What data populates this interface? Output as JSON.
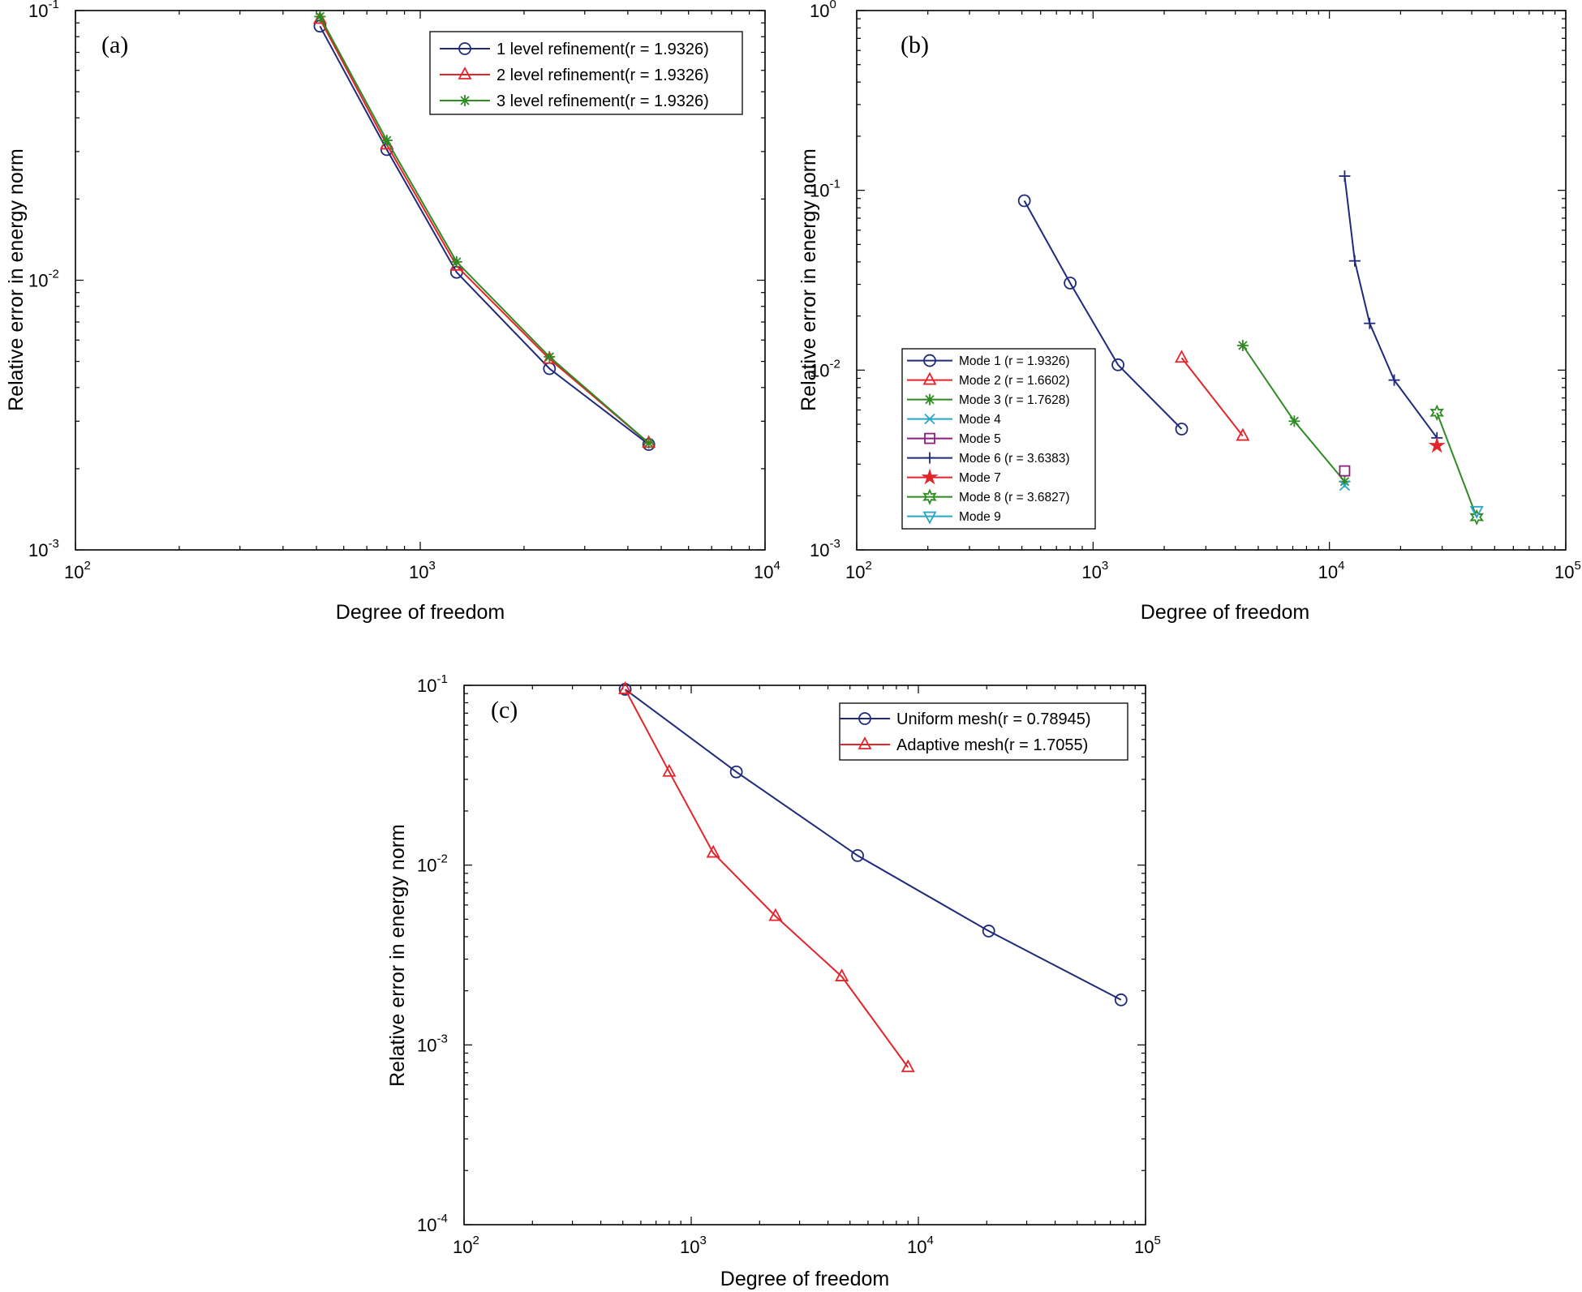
{
  "colors": {
    "navy": "#1f2a7a",
    "red": "#e3242b",
    "green": "#2e8b22",
    "cyan": "#2aa6c6",
    "purple": "#8b1e80",
    "axis": "#000000"
  },
  "chart_data": [
    {
      "id": "a",
      "type": "line",
      "panel_label": "(a)",
      "xlabel": "Degree of freedom",
      "ylabel": "Relative error in energy norm",
      "xscale": "log",
      "yscale": "log",
      "xlim": [
        100,
        10000
      ],
      "ylim": [
        0.001,
        0.1
      ],
      "xticks": [
        {
          "base": "10",
          "exp": "2"
        },
        {
          "base": "10",
          "exp": "3"
        },
        {
          "base": "10",
          "exp": "4"
        }
      ],
      "yticks": [
        {
          "base": "10",
          "exp": "-3"
        },
        {
          "base": "10",
          "exp": "-2"
        },
        {
          "base": "10",
          "exp": "-1"
        }
      ],
      "legend_position": "top-right",
      "series": [
        {
          "name": "1 level refinement(r = 1.9326)",
          "color": "navy",
          "marker": "circle",
          "x": [
            512,
            800,
            1275,
            2370,
            4600
          ],
          "y": [
            0.0875,
            0.0305,
            0.0107,
            0.0047,
            0.00246
          ]
        },
        {
          "name": "2 level refinement(r = 1.9326)",
          "color": "red",
          "marker": "triangle",
          "x": [
            512,
            800,
            1275,
            2370,
            4600
          ],
          "y": [
            0.093,
            0.0318,
            0.0113,
            0.0051,
            0.00249
          ]
        },
        {
          "name": "3 level refinement(r = 1.9326)",
          "color": "green",
          "marker": "asterisk",
          "x": [
            512,
            800,
            1275,
            2370,
            4600
          ],
          "y": [
            0.095,
            0.033,
            0.0117,
            0.0052,
            0.00249
          ]
        }
      ]
    },
    {
      "id": "b",
      "type": "line",
      "panel_label": "(b)",
      "xlabel": "Degree of freedom",
      "ylabel": "Relative error in energy norm",
      "xscale": "log",
      "yscale": "log",
      "xlim": [
        100,
        100000
      ],
      "ylim": [
        0.001,
        1
      ],
      "xticks": [
        {
          "base": "10",
          "exp": "2"
        },
        {
          "base": "10",
          "exp": "3"
        },
        {
          "base": "10",
          "exp": "4"
        },
        {
          "base": "10",
          "exp": "5"
        }
      ],
      "yticks": [
        {
          "base": "10",
          "exp": "-3"
        },
        {
          "base": "10",
          "exp": "-2"
        },
        {
          "base": "10",
          "exp": "-1"
        },
        {
          "base": "10",
          "exp": "0"
        }
      ],
      "legend_position": "bottom-left",
      "series": [
        {
          "name": "Mode 1 (r = 1.9326)",
          "color": "navy",
          "marker": "circle",
          "x": [
            512,
            800,
            1275,
            2370
          ],
          "y": [
            0.0875,
            0.0305,
            0.0107,
            0.0047
          ]
        },
        {
          "name": "Mode 2 (r = 1.6602)",
          "color": "red",
          "marker": "triangle",
          "x": [
            2370,
            4300
          ],
          "y": [
            0.0117,
            0.0043
          ]
        },
        {
          "name": "Mode 3 (r = 1.7628)",
          "color": "green",
          "marker": "asterisk",
          "x": [
            4300,
            7100,
            11600
          ],
          "y": [
            0.0137,
            0.0052,
            0.0024
          ]
        },
        {
          "name": "Mode 4",
          "color": "cyan",
          "marker": "x",
          "x": [
            11600
          ],
          "y": [
            0.00228
          ]
        },
        {
          "name": "Mode 5",
          "color": "purple",
          "marker": "square",
          "x": [
            11600
          ],
          "y": [
            0.00275
          ]
        },
        {
          "name": "Mode 6 (r = 3.6383)",
          "color": "navy",
          "marker": "plus",
          "x": [
            11600,
            12800,
            14800,
            18800,
            28500
          ],
          "y": [
            0.12,
            0.0405,
            0.0182,
            0.0088,
            0.0042
          ]
        },
        {
          "name": "Mode 7",
          "color": "red",
          "marker": "star",
          "x": [
            28500
          ],
          "y": [
            0.0038
          ]
        },
        {
          "name": "Mode 8 (r = 3.6827)",
          "color": "green",
          "marker": "hexagram",
          "x": [
            28500,
            42000
          ],
          "y": [
            0.0058,
            0.00152
          ]
        },
        {
          "name": "Mode 9",
          "color": "cyan",
          "marker": "down-triangle",
          "x": [
            42000
          ],
          "y": [
            0.00165
          ]
        }
      ]
    },
    {
      "id": "c",
      "type": "line",
      "panel_label": "(c)",
      "xlabel": "Degree of freedom",
      "ylabel": "Relative error in energy norm",
      "xscale": "log",
      "yscale": "log",
      "xlim": [
        100,
        100000
      ],
      "ylim": [
        0.0001,
        0.1
      ],
      "xticks": [
        {
          "base": "10",
          "exp": "2"
        },
        {
          "base": "10",
          "exp": "3"
        },
        {
          "base": "10",
          "exp": "4"
        },
        {
          "base": "10",
          "exp": "5"
        }
      ],
      "yticks": [
        {
          "base": "10",
          "exp": "-4"
        },
        {
          "base": "10",
          "exp": "-3"
        },
        {
          "base": "10",
          "exp": "-2"
        },
        {
          "base": "10",
          "exp": "-1"
        }
      ],
      "legend_position": "top-right",
      "series": [
        {
          "name": "Uniform mesh(r = 0.78945)",
          "color": "navy",
          "marker": "circle",
          "x": [
            512,
            1580,
            5400,
            20400,
            78000
          ],
          "y": [
            0.095,
            0.033,
            0.0113,
            0.0043,
            0.00178
          ]
        },
        {
          "name": "Adaptive mesh(r = 1.7055)",
          "color": "red",
          "marker": "triangle",
          "x": [
            512,
            800,
            1250,
            2350,
            4600,
            9000
          ],
          "y": [
            0.095,
            0.033,
            0.0117,
            0.0052,
            0.0024,
            0.00075
          ]
        }
      ]
    }
  ]
}
